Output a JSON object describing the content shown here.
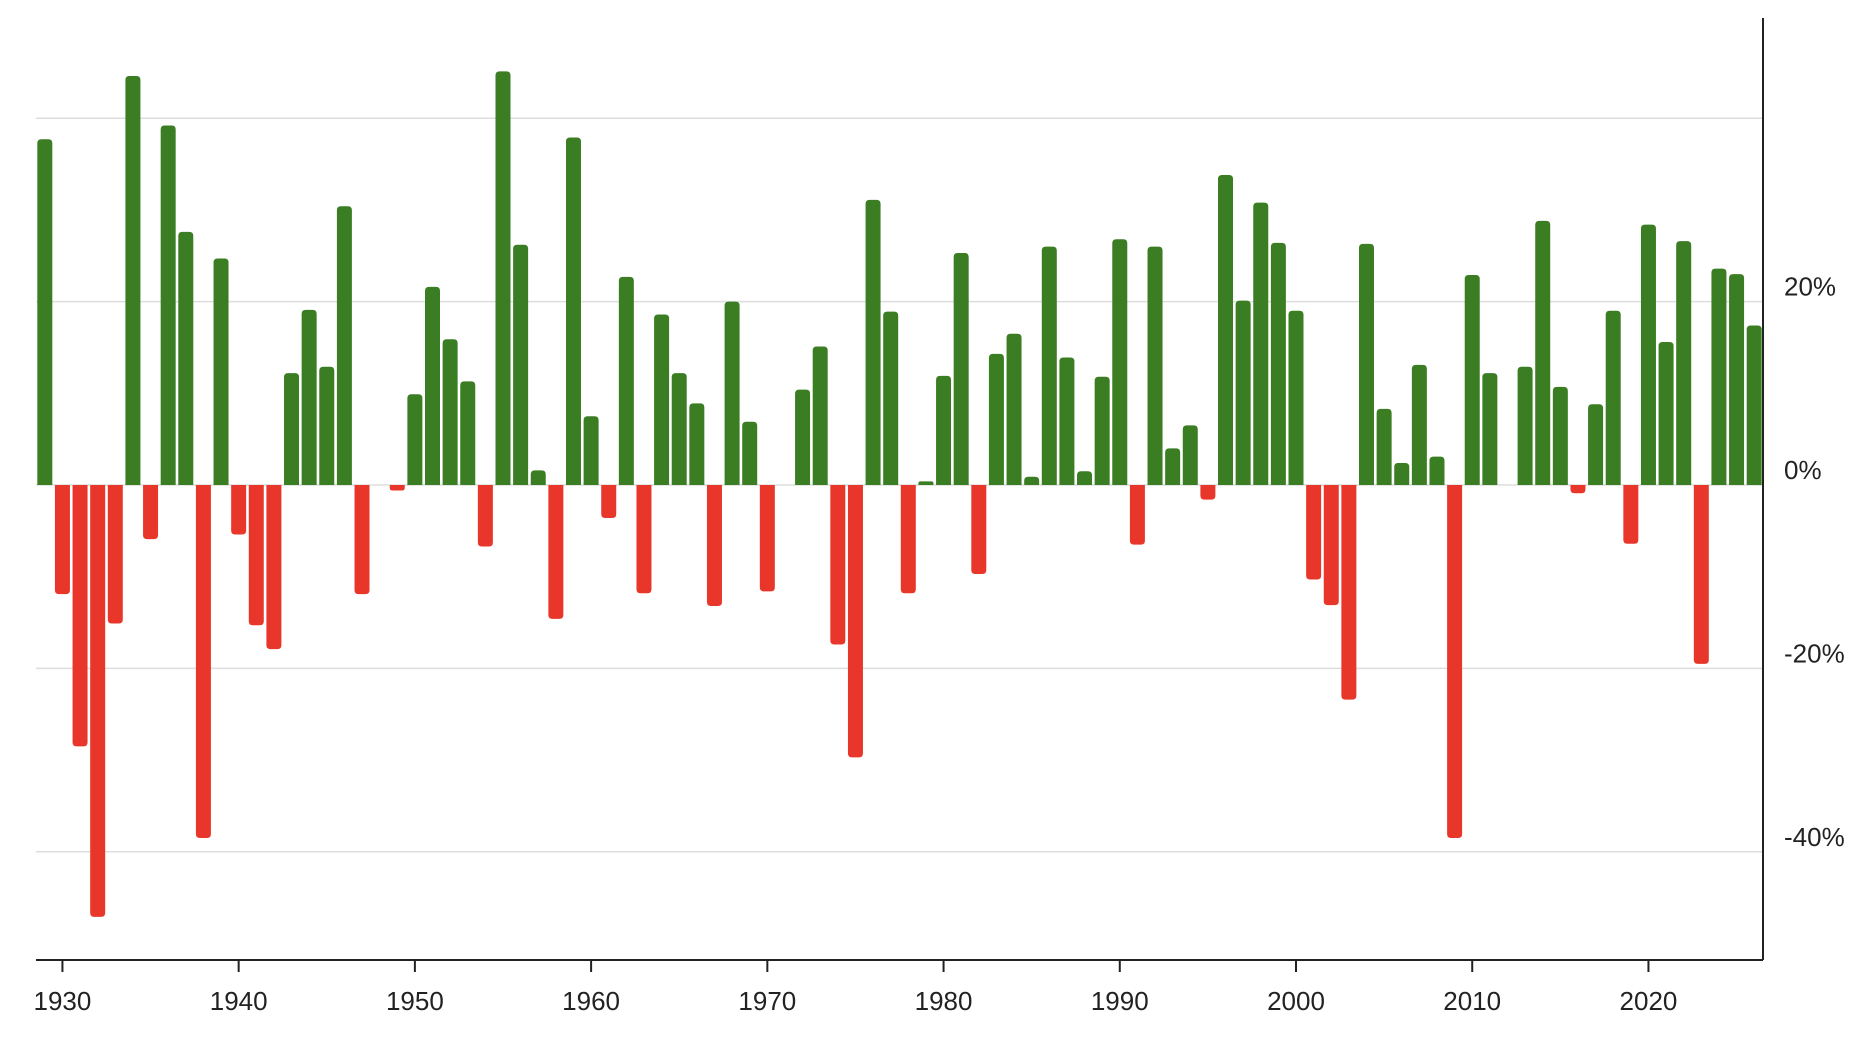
{
  "chart_data": {
    "type": "bar",
    "title": "",
    "xlabel": "",
    "ylabel": "",
    "x_axis": {
      "range": [
        1928.5,
        2026.5
      ],
      "ticks": [
        {
          "value": 1930,
          "label": "1930"
        },
        {
          "value": 1940,
          "label": "1940"
        },
        {
          "value": 1950,
          "label": "1950"
        },
        {
          "value": 1960,
          "label": "1960"
        },
        {
          "value": 1970,
          "label": "1970"
        },
        {
          "value": 1980,
          "label": "1980"
        },
        {
          "value": 1990,
          "label": "1990"
        },
        {
          "value": 2000,
          "label": "2000"
        },
        {
          "value": 2010,
          "label": "2010"
        },
        {
          "value": 2020,
          "label": "2020"
        }
      ]
    },
    "y_axis": {
      "position": "right",
      "unit": "percent",
      "range": [
        -52,
        51
      ],
      "ticks": [
        {
          "value": 20,
          "label": "20%"
        },
        {
          "value": 0,
          "label": "0%"
        },
        {
          "value": -20,
          "label": "-20%"
        },
        {
          "value": -40,
          "label": "-40%"
        }
      ],
      "gridlines": [
        40,
        20,
        0,
        -20,
        -40
      ]
    },
    "grid": true,
    "legend": "none",
    "colors": {
      "positive": "#3a7d22",
      "negative": "#e8372a"
    },
    "series": [
      {
        "x": [
          1929,
          1930,
          1931,
          1932,
          1933,
          1934,
          1935,
          1936,
          1937,
          1938,
          1939,
          1940,
          1941,
          1942,
          1943,
          1944,
          1945,
          1946,
          1947,
          1948,
          1949,
          1950,
          1951,
          1952,
          1953,
          1954,
          1955,
          1956,
          1957,
          1958,
          1959,
          1960,
          1961,
          1962,
          1963,
          1964,
          1965,
          1966,
          1967,
          1968,
          1969,
          1970,
          1971,
          1972,
          1973,
          1974,
          1975,
          1976,
          1977,
          1978,
          1979,
          1980,
          1981,
          1982,
          1983,
          1984,
          1985,
          1986,
          1987,
          1988,
          1989,
          1990,
          1991,
          1992,
          1993,
          1994,
          1995,
          1996,
          1997,
          1998,
          1999,
          2000,
          2001,
          2002,
          2003,
          2004,
          2005,
          2006,
          2007,
          2008,
          2009,
          2010,
          2011,
          2012,
          2013,
          2014,
          2015,
          2016,
          2017,
          2018,
          2019,
          2020,
          2021,
          2022,
          2023,
          2024,
          2025,
          2026
        ],
        "values": [
          37.7,
          -11.9,
          -28.5,
          -47.1,
          -15.1,
          44.6,
          -5.9,
          39.2,
          27.6,
          -38.5,
          24.7,
          -5.4,
          -15.3,
          -17.9,
          12.2,
          19.1,
          12.9,
          30.4,
          -11.9,
          0,
          -0.6,
          9.9,
          21.6,
          15.9,
          11.3,
          -6.7,
          45.1,
          26.2,
          1.6,
          -14.6,
          37.9,
          7.5,
          -3.6,
          22.7,
          -11.8,
          18.6,
          12.2,
          8.9,
          -13.2,
          20.0,
          6.9,
          -11.6,
          0,
          10.4,
          15.1,
          -17.4,
          -29.7,
          31.1,
          18.9,
          -11.8,
          0.4,
          11.9,
          25.3,
          -9.7,
          14.3,
          16.5,
          0.9,
          26.0,
          13.9,
          1.5,
          11.8,
          26.8,
          -6.5,
          26.0,
          4.0,
          6.5,
          -1.6,
          33.8,
          20.1,
          30.8,
          26.4,
          19.0,
          -10.3,
          -13.1,
          -23.4,
          26.3,
          8.3,
          2.4,
          13.1,
          3.1,
          -38.5,
          22.9,
          12.2,
          0,
          12.9,
          28.8,
          10.7,
          -0.9,
          8.8,
          19.0,
          -6.4,
          28.4,
          15.6,
          26.6,
          -19.5,
          23.6,
          23.0,
          17.4
        ]
      }
    ]
  }
}
